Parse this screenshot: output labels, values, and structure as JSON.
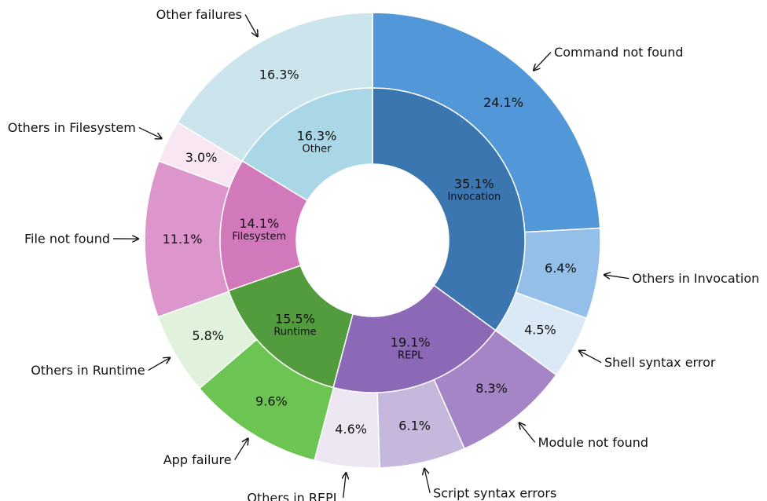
{
  "chart_data": {
    "type": "pie",
    "variant": "nested-donut",
    "inner": [
      {
        "name": "Invocation",
        "value": 35.1,
        "label": "35.1%",
        "color": "#3b76b0"
      },
      {
        "name": "REPL",
        "value": 19.1,
        "label": "19.1%",
        "color": "#8c69b6"
      },
      {
        "name": "Runtime",
        "value": 15.5,
        "label": "15.5%",
        "color": "#529c3d"
      },
      {
        "name": "Filesystem",
        "value": 14.1,
        "label": "14.1%",
        "color": "#d279bb"
      },
      {
        "name": "Other",
        "value": 16.3,
        "label": "16.3%",
        "color": "#aad7e5"
      }
    ],
    "outer": [
      {
        "name": "Command not found",
        "value": 24.1,
        "label": "24.1%",
        "color": "#5297d7"
      },
      {
        "name": "Others in Invocation",
        "value": 6.4,
        "label": "6.4%",
        "color": "#93bfe8"
      },
      {
        "name": "Shell syntax error",
        "value": 4.5,
        "label": "4.5%",
        "color": "#dbe8f5"
      },
      {
        "name": "Module not found",
        "value": 8.3,
        "label": "8.3%",
        "color": "#a585c6"
      },
      {
        "name": "Script syntax errors",
        "value": 6.1,
        "label": "6.1%",
        "color": "#c6b7dc"
      },
      {
        "name": "Others in REPL",
        "value": 4.6,
        "label": "4.6%",
        "color": "#ece7f3"
      },
      {
        "name": "App failure",
        "value": 9.6,
        "label": "9.6%",
        "color": "#6cc552"
      },
      {
        "name": "Others in Runtime",
        "value": 5.8,
        "label": "5.8%",
        "color": "#e1f2dc"
      },
      {
        "name": "File not found",
        "value": 11.1,
        "label": "11.1%",
        "color": "#dc96cb"
      },
      {
        "name": "Others in Filesystem",
        "value": 3.0,
        "label": "3.0%",
        "color": "#f8e6f2"
      },
      {
        "name": "Other failures",
        "value": 16.3,
        "label": "16.3%",
        "color": "#cce5ed"
      }
    ],
    "start": "top",
    "direction": "clockwise"
  }
}
